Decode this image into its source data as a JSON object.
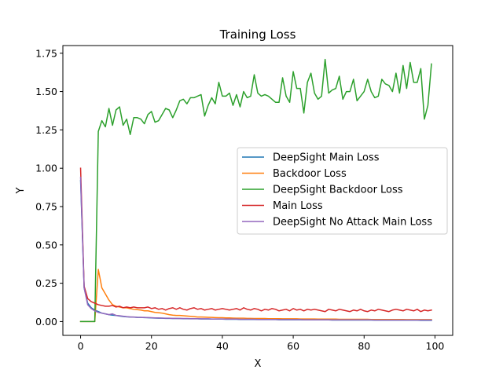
{
  "chart_data": {
    "type": "line",
    "title": "Training Loss",
    "xlabel": "X",
    "ylabel": "Y",
    "xlim": [
      -5,
      105
    ],
    "ylim": [
      -0.09,
      1.8
    ],
    "xticks": [
      0,
      20,
      40,
      60,
      80,
      100
    ],
    "yticks": [
      0.0,
      0.25,
      0.5,
      0.75,
      1.0,
      1.25,
      1.5,
      1.75
    ],
    "xtick_labels": [
      "0",
      "20",
      "40",
      "60",
      "80",
      "100"
    ],
    "ytick_labels": [
      "0.00",
      "0.25",
      "0.50",
      "0.75",
      "1.00",
      "1.25",
      "1.50",
      "1.75"
    ],
    "grid": false,
    "legend_position": "center-right",
    "series": [
      {
        "name": "DeepSight Main Loss",
        "color": "#1f77b4",
        "values": [
          0.92,
          0.22,
          0.12,
          0.09,
          0.075,
          0.065,
          0.055,
          0.05,
          0.045,
          0.042,
          0.04,
          0.036,
          0.033,
          0.031,
          0.03,
          0.029,
          0.027,
          0.027,
          0.026,
          0.025,
          0.024,
          0.023,
          0.022,
          0.022,
          0.021,
          0.021,
          0.02,
          0.02,
          0.02,
          0.019,
          0.019,
          0.018,
          0.018,
          0.018,
          0.017,
          0.017,
          0.017,
          0.016,
          0.016,
          0.016,
          0.016,
          0.015,
          0.015,
          0.015,
          0.015,
          0.014,
          0.014,
          0.014,
          0.014,
          0.014,
          0.013,
          0.013,
          0.013,
          0.013,
          0.013,
          0.013,
          0.012,
          0.012,
          0.012,
          0.012,
          0.012,
          0.012,
          0.012,
          0.011,
          0.011,
          0.011,
          0.011,
          0.011,
          0.011,
          0.011,
          0.011,
          0.01,
          0.01,
          0.01,
          0.01,
          0.01,
          0.01,
          0.01,
          0.01,
          0.01,
          0.01,
          0.01,
          0.01,
          0.009,
          0.009,
          0.009,
          0.009,
          0.009,
          0.009,
          0.009,
          0.009,
          0.009,
          0.009,
          0.009,
          0.009,
          0.009,
          0.008,
          0.008,
          0.008,
          0.008
        ]
      },
      {
        "name": "Backdoor Loss",
        "color": "#ff7f0e",
        "values": [
          0,
          0,
          0,
          0,
          0,
          0.34,
          0.22,
          0.18,
          0.14,
          0.11,
          0.1,
          0.095,
          0.09,
          0.09,
          0.085,
          0.08,
          0.078,
          0.075,
          0.07,
          0.07,
          0.065,
          0.06,
          0.058,
          0.055,
          0.05,
          0.045,
          0.042,
          0.04,
          0.04,
          0.038,
          0.036,
          0.034,
          0.032,
          0.03,
          0.03,
          0.029,
          0.028,
          0.027,
          0.026,
          0.025,
          0.025,
          0.024,
          0.024,
          0.023,
          0.022,
          0.022,
          0.022,
          0.021,
          0.021,
          0.02,
          0.02,
          0.02,
          0.02,
          0.019,
          0.019,
          0.019,
          0.019,
          0.018,
          0.018,
          0.018,
          0.018,
          0.018,
          0.017,
          0.017,
          0.017,
          0.017,
          0.017,
          0.016,
          0.016,
          0.016,
          0.016,
          0.016,
          0.016,
          0.015,
          0.015,
          0.015,
          0.015,
          0.015,
          0.015,
          0.015,
          0.015,
          0.015,
          0.014,
          0.014,
          0.014,
          0.014,
          0.014,
          0.014,
          0.014,
          0.014,
          0.014,
          0.014,
          0.013,
          0.013,
          0.013,
          0.013,
          0.013,
          0.013,
          0.013,
          0.013
        ]
      },
      {
        "name": "DeepSight Backdoor Loss",
        "color": "#2ca02c",
        "values": [
          0,
          0,
          0,
          0,
          0,
          1.24,
          1.31,
          1.27,
          1.39,
          1.28,
          1.38,
          1.4,
          1.28,
          1.32,
          1.22,
          1.33,
          1.33,
          1.32,
          1.29,
          1.35,
          1.37,
          1.3,
          1.31,
          1.35,
          1.39,
          1.38,
          1.33,
          1.38,
          1.44,
          1.45,
          1.42,
          1.46,
          1.46,
          1.47,
          1.48,
          1.34,
          1.41,
          1.46,
          1.42,
          1.56,
          1.47,
          1.47,
          1.49,
          1.41,
          1.48,
          1.4,
          1.5,
          1.46,
          1.47,
          1.61,
          1.49,
          1.47,
          1.48,
          1.47,
          1.45,
          1.43,
          1.43,
          1.59,
          1.47,
          1.43,
          1.63,
          1.52,
          1.52,
          1.36,
          1.56,
          1.62,
          1.49,
          1.45,
          1.47,
          1.71,
          1.49,
          1.51,
          1.52,
          1.6,
          1.45,
          1.5,
          1.5,
          1.58,
          1.44,
          1.47,
          1.5,
          1.58,
          1.5,
          1.46,
          1.47,
          1.58,
          1.55,
          1.54,
          1.5,
          1.62,
          1.49,
          1.67,
          1.52,
          1.69,
          1.56,
          1.56,
          1.65,
          1.32,
          1.41,
          1.68
        ]
      },
      {
        "name": "Main Loss",
        "color": "#d62728",
        "values": [
          1.0,
          0.23,
          0.15,
          0.13,
          0.12,
          0.11,
          0.105,
          0.1,
          0.1,
          0.105,
          0.095,
          0.1,
          0.09,
          0.095,
          0.09,
          0.095,
          0.09,
          0.09,
          0.09,
          0.095,
          0.085,
          0.09,
          0.08,
          0.085,
          0.075,
          0.085,
          0.09,
          0.08,
          0.09,
          0.08,
          0.075,
          0.085,
          0.09,
          0.08,
          0.085,
          0.075,
          0.08,
          0.085,
          0.075,
          0.08,
          0.085,
          0.08,
          0.075,
          0.08,
          0.085,
          0.075,
          0.09,
          0.08,
          0.075,
          0.085,
          0.08,
          0.07,
          0.08,
          0.075,
          0.085,
          0.08,
          0.07,
          0.075,
          0.08,
          0.07,
          0.085,
          0.075,
          0.08,
          0.07,
          0.08,
          0.075,
          0.08,
          0.075,
          0.07,
          0.065,
          0.08,
          0.075,
          0.07,
          0.08,
          0.075,
          0.07,
          0.065,
          0.075,
          0.07,
          0.08,
          0.07,
          0.065,
          0.075,
          0.07,
          0.08,
          0.075,
          0.07,
          0.065,
          0.075,
          0.08,
          0.075,
          0.07,
          0.08,
          0.075,
          0.07,
          0.08,
          0.065,
          0.075,
          0.07,
          0.075
        ]
      },
      {
        "name": "DeepSight No Attack Main Loss",
        "color": "#9467bd",
        "values": [
          0.94,
          0.22,
          0.11,
          0.085,
          0.07,
          0.06,
          0.055,
          0.05,
          0.045,
          0.05,
          0.04,
          0.038,
          0.035,
          0.032,
          0.03,
          0.03,
          0.028,
          0.027,
          0.027,
          0.026,
          0.025,
          0.024,
          0.024,
          0.023,
          0.022,
          0.022,
          0.021,
          0.021,
          0.02,
          0.02,
          0.02,
          0.019,
          0.019,
          0.019,
          0.018,
          0.018,
          0.018,
          0.017,
          0.017,
          0.017,
          0.017,
          0.016,
          0.016,
          0.016,
          0.016,
          0.015,
          0.015,
          0.015,
          0.015,
          0.015,
          0.014,
          0.014,
          0.014,
          0.014,
          0.014,
          0.014,
          0.013,
          0.013,
          0.013,
          0.013,
          0.013,
          0.013,
          0.013,
          0.012,
          0.012,
          0.012,
          0.012,
          0.012,
          0.012,
          0.012,
          0.012,
          0.011,
          0.011,
          0.011,
          0.011,
          0.011,
          0.011,
          0.011,
          0.011,
          0.011,
          0.011,
          0.011,
          0.011,
          0.01,
          0.01,
          0.01,
          0.01,
          0.01,
          0.01,
          0.01,
          0.01,
          0.01,
          0.01,
          0.01,
          0.01,
          0.01,
          0.01,
          0.01,
          0.01,
          0.01
        ]
      }
    ]
  }
}
